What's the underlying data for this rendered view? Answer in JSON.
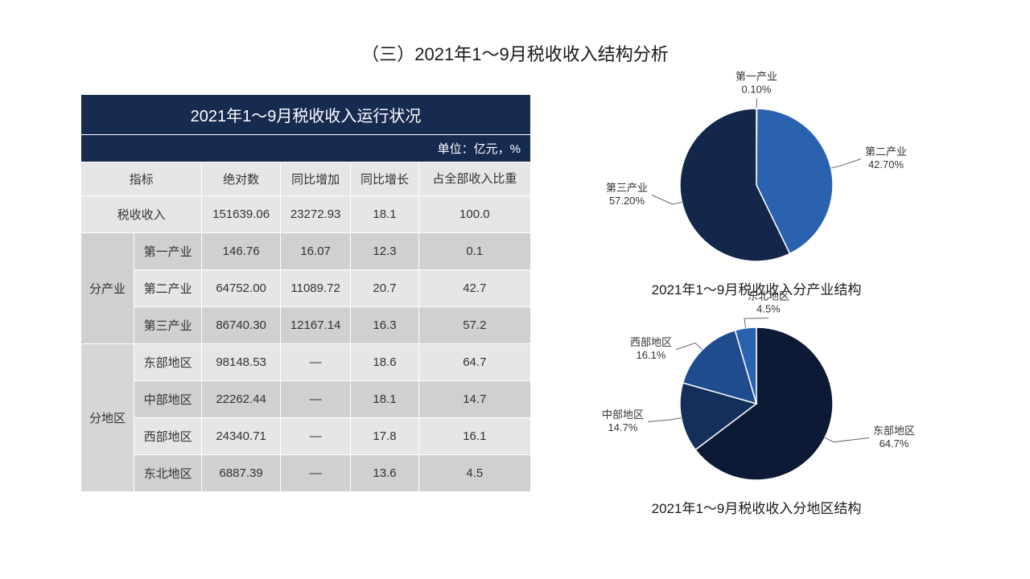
{
  "page": {
    "title": "（三）2021年1～9月税收收入结构分析",
    "title_fontsize": 22,
    "background_color": "#ffffff"
  },
  "table": {
    "title": "2021年1～9月税收收入运行状况",
    "unit_label": "单位：亿元，%",
    "header_bg": "#172a4f",
    "header_fg": "#ffffff",
    "cell_bg": "#e6e6e6",
    "cell_bg_shade": "#d0d0d0",
    "border_color": "#ffffff",
    "font_size": 15,
    "columns": [
      "指标",
      "绝对数",
      "同比增加",
      "同比增长",
      "占全部收入比重"
    ],
    "total_row": {
      "label": "税收收入",
      "abs": "151639.06",
      "yoy_add": "23272.93",
      "yoy_pct": "18.1",
      "share": "100.0"
    },
    "industry_group_label": "分产业",
    "industry_rows": [
      {
        "label": "第一产业",
        "abs": "146.76",
        "yoy_add": "16.07",
        "yoy_pct": "12.3",
        "share": "0.1"
      },
      {
        "label": "第二产业",
        "abs": "64752.00",
        "yoy_add": "11089.72",
        "yoy_pct": "20.7",
        "share": "42.7"
      },
      {
        "label": "第三产业",
        "abs": "86740.30",
        "yoy_add": "12167.14",
        "yoy_pct": "16.3",
        "share": "57.2"
      }
    ],
    "region_group_label": "分地区",
    "region_rows": [
      {
        "label": "东部地区",
        "abs": "98148.53",
        "yoy_add": "—",
        "yoy_pct": "18.6",
        "share": "64.7"
      },
      {
        "label": "中部地区",
        "abs": "22262.44",
        "yoy_add": "—",
        "yoy_pct": "18.1",
        "share": "14.7"
      },
      {
        "label": "西部地区",
        "abs": "24340.71",
        "yoy_add": "—",
        "yoy_pct": "17.8",
        "share": "16.1"
      },
      {
        "label": "东北地区",
        "abs": "6887.39",
        "yoy_add": "—",
        "yoy_pct": "13.6",
        "share": "4.5"
      }
    ]
  },
  "pie_industry": {
    "type": "pie",
    "caption": "2021年1～9月税收收入分产业结构",
    "radius": 95,
    "stroke_color": "#ffffff",
    "stroke_width": 1.5,
    "label_fontsize": 13,
    "caption_fontsize": 17,
    "slices": [
      {
        "name": "第一产业",
        "value": 0.1,
        "display": "0.10%",
        "color": "#1f4c8f"
      },
      {
        "name": "第二产业",
        "value": 42.7,
        "display": "42.70%",
        "color": "#2a62b0"
      },
      {
        "name": "第三产业",
        "value": 57.2,
        "display": "57.20%",
        "color": "#13274b"
      }
    ]
  },
  "pie_region": {
    "type": "pie",
    "caption": "2021年1～9月税收收入分地区结构",
    "radius": 95,
    "stroke_color": "#ffffff",
    "stroke_width": 1.5,
    "label_fontsize": 13,
    "caption_fontsize": 17,
    "slices": [
      {
        "name": "东部地区",
        "value": 64.7,
        "display": "64.7%",
        "color": "#0d1a36"
      },
      {
        "name": "中部地区",
        "value": 14.7,
        "display": "14.7%",
        "color": "#142f5c"
      },
      {
        "name": "西部地区",
        "value": 16.1,
        "display": "16.1%",
        "color": "#1f4c8f"
      },
      {
        "name": "东北地区",
        "value": 4.5,
        "display": "4.5%",
        "color": "#2a62b0"
      }
    ]
  }
}
